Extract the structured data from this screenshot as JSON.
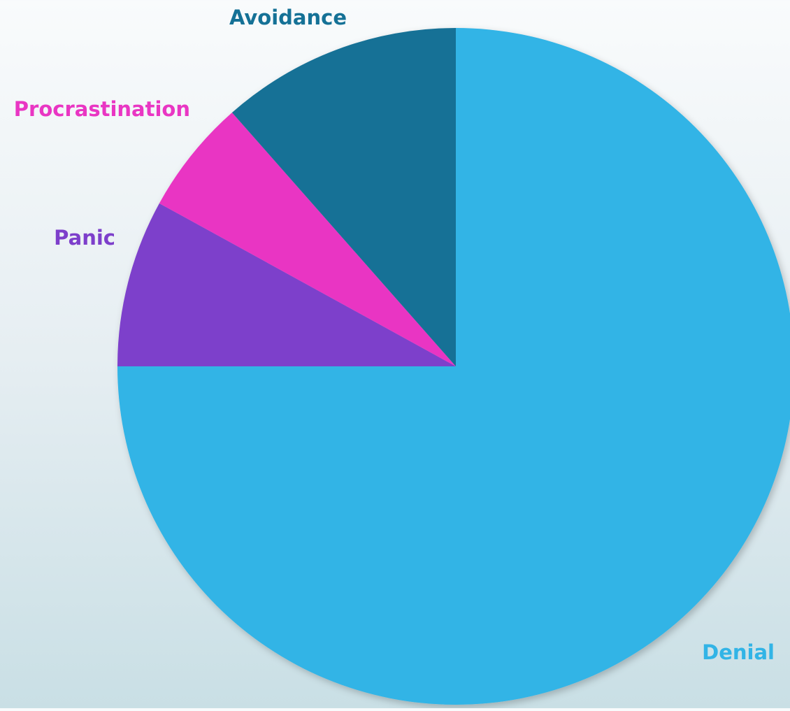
{
  "chart_data": {
    "type": "pie",
    "start_angle_deg": 0,
    "direction": "clockwise",
    "slices": [
      {
        "label": "Denial",
        "value": 75,
        "color": "#32b4e6"
      },
      {
        "label": "Panic",
        "value": 8,
        "color": "#7d3fcb"
      },
      {
        "label": "Procrastination",
        "value": 5.5,
        "color": "#e936c3"
      },
      {
        "label": "Avoidance",
        "value": 11.5,
        "color": "#157196"
      }
    ]
  }
}
